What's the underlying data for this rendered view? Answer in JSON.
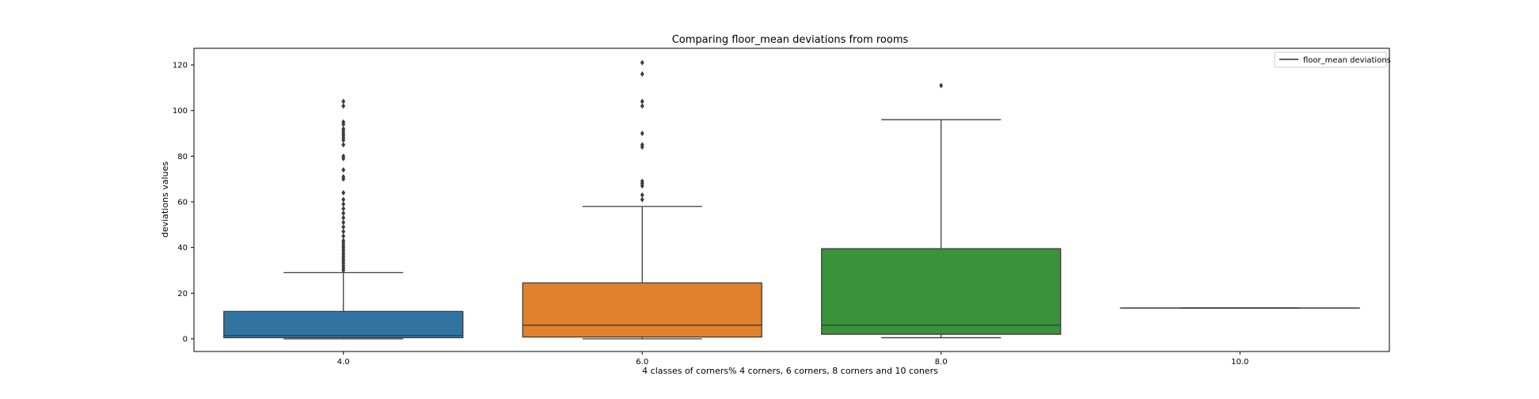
{
  "chart_data": {
    "type": "box",
    "title": "Comparing floor_mean deviations from rooms",
    "xlabel": "4 classes of corners% 4 corners, 6 corners, 8 corners and 10 coners",
    "ylabel": "deviations values",
    "ylim": [
      -6,
      127
    ],
    "y_ticks": [
      0,
      20,
      40,
      60,
      80,
      100,
      120
    ],
    "y_tick_labels": [
      "0",
      "20",
      "40",
      "60",
      "80",
      "100",
      "120"
    ],
    "categories": [
      "4.0",
      "6.0",
      "8.0",
      "10.0"
    ],
    "legend": {
      "label": "floor_mean deviations",
      "position": "upper right"
    },
    "grid": false,
    "boxes": [
      {
        "category": "4.0",
        "whisker_low": 0,
        "q1": 0.5,
        "median": 1.5,
        "q3": 12,
        "whisker_high": 29,
        "color": "#3274a1",
        "outliers": [
          30,
          31,
          32,
          33,
          34,
          35,
          36,
          37,
          38,
          39,
          40,
          41,
          42,
          43,
          45,
          47,
          49,
          51,
          53,
          55,
          57,
          59,
          61,
          64,
          70,
          71,
          74,
          79,
          80,
          85,
          87,
          88,
          89,
          90,
          91,
          92,
          94,
          95,
          102,
          104
        ]
      },
      {
        "category": "6.0",
        "whisker_low": 0,
        "q1": 0.8,
        "median": 6,
        "q3": 24.5,
        "whisker_high": 58,
        "color": "#e1812c",
        "outliers": [
          61,
          63,
          67,
          68,
          69,
          84,
          85,
          90,
          102,
          104,
          116,
          121
        ]
      },
      {
        "category": "8.0",
        "whisker_low": 0.5,
        "q1": 2,
        "median": 6,
        "q3": 39.5,
        "whisker_high": 96,
        "color": "#3a923a",
        "outliers": [
          111
        ]
      },
      {
        "category": "10.0",
        "whisker_low": 13.5,
        "q1": 13.5,
        "median": 13.5,
        "q3": 13.5,
        "whisker_high": 13.5,
        "color": "#c03d3e",
        "outliers": []
      }
    ]
  }
}
